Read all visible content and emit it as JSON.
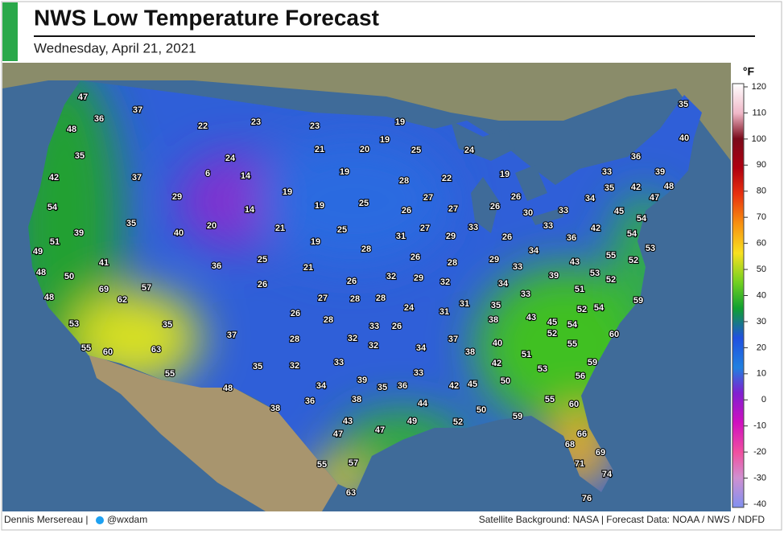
{
  "header": {
    "title": "NWS Low Temperature Forecast",
    "subtitle": "Wednesday, April 21, 2021"
  },
  "map": {
    "temperatures": [
      47,
      37,
      36,
      48,
      22,
      23,
      23,
      19,
      19,
      35,
      35,
      24,
      21,
      20,
      25,
      24,
      40,
      36,
      6,
      14,
      37,
      42,
      19,
      28,
      22,
      19,
      33,
      39,
      19,
      29,
      48,
      42,
      35,
      34,
      26,
      27,
      25,
      19,
      14,
      26,
      27,
      26,
      47,
      54,
      30,
      33,
      45,
      54,
      35,
      20,
      21,
      25,
      33,
      33,
      42,
      39,
      40,
      31,
      27,
      29,
      26,
      36,
      54,
      51,
      19,
      28,
      34,
      53,
      49,
      41,
      36,
      25,
      21,
      26,
      28,
      29,
      55,
      52,
      33,
      43,
      48,
      50,
      69,
      57,
      26,
      26,
      32,
      29,
      32,
      34,
      39,
      53,
      52,
      51,
      62,
      48,
      27,
      28,
      28,
      24,
      31,
      31,
      35,
      33,
      59,
      52,
      54,
      26,
      28,
      38,
      43,
      45,
      54,
      53,
      35,
      33,
      26,
      37,
      52,
      60,
      37,
      28,
      32,
      32,
      40,
      55,
      55,
      60,
      63,
      34,
      38,
      51,
      33,
      42,
      53,
      59,
      35,
      32,
      33,
      55,
      56,
      34,
      39,
      35,
      36,
      42,
      45,
      50,
      48,
      36,
      38,
      44,
      55,
      60,
      38,
      50,
      59,
      43,
      49,
      52,
      47,
      47,
      66,
      68,
      69,
      55,
      57,
      71,
      74,
      63,
      76
    ]
  },
  "legend": {
    "unit": "°F",
    "ticks": [
      120,
      110,
      100,
      90,
      80,
      70,
      60,
      50,
      40,
      30,
      20,
      10,
      0,
      -10,
      -20,
      -30,
      -40
    ]
  },
  "footer": {
    "credit": "Dennis Mersereau |",
    "handle": "@wxdam",
    "sources": "Satellite Background: NASA | Forecast Data: NOAA / NWS / NDFD"
  }
}
